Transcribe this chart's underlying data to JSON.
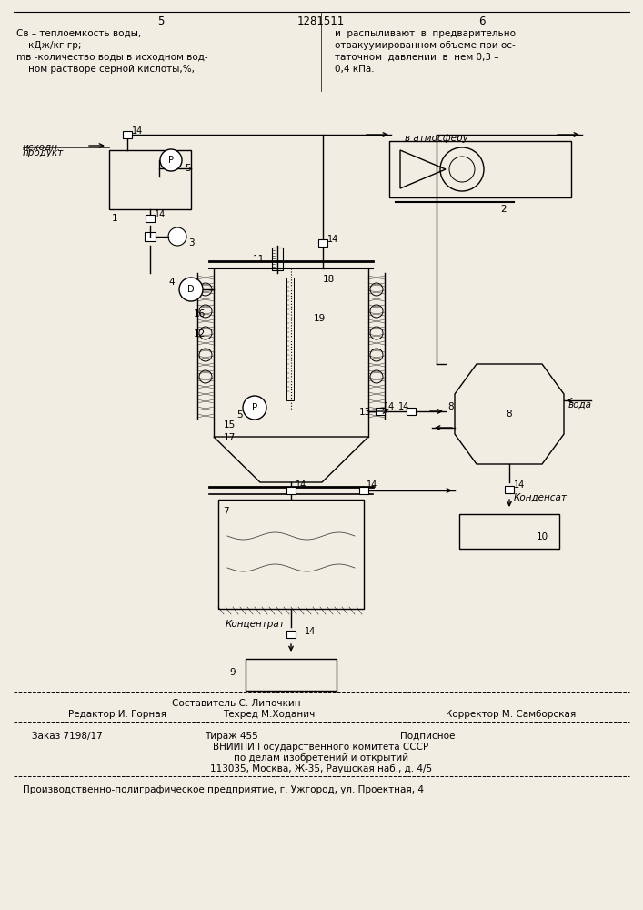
{
  "page_color": "#f2ede3",
  "header_nums": [
    "5",
    "1281511",
    "6"
  ],
  "top_left": [
    "Cв – теплоемкость воды,",
    "    кДж/кг·гр;",
    "mв -количество воды в исходном вод-",
    "    ном растворе серной кислоты,%,"
  ],
  "top_right": [
    "и  распыливают  в  предварительно",
    "отвакуумированном объеме при ос-",
    "таточном  давлении  в  нем 0,3 –",
    "0,4 кПа."
  ],
  "footer_composer": "Составитель С. Липочкин",
  "footer_editor": "Редактор И. Горная",
  "footer_techred": "Техред М.Ходанич",
  "footer_corrector": "Корректор М. Самборская",
  "footer_order": "Заказ 7198/17",
  "footer_tirazh": "Тираж 455",
  "footer_podp": "Подписное",
  "footer_vniip1": "ВНИИПИ Государственного комитета СССР",
  "footer_vniip2": "по делам изобретений и открытий",
  "footer_vniip3": "113035, Москва, Ж-35, Раушская наб., д. 4/5",
  "footer_last": "Производственно-полиграфическое предприятие, г. Ужгород, ул. Проектная, 4"
}
